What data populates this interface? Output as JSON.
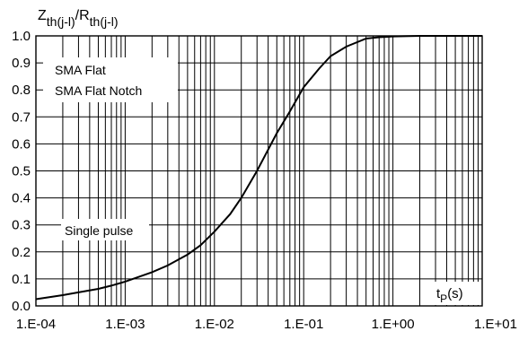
{
  "chart_data": {
    "type": "line",
    "title": "",
    "ylabel": {
      "main": "Z",
      "sub1": "th(j-l)",
      "sep": "/R",
      "sub2": "th(j-l)"
    },
    "xlabel": {
      "main": "t",
      "sub": "P",
      "unit": "(s)"
    },
    "x_scale": "log",
    "xlim": [
      0.0001,
      10
    ],
    "ylim": [
      0,
      1.0
    ],
    "grid": true,
    "x_tick_labels": [
      "1.E-04",
      "1.E-03",
      "1.E-02",
      "1.E-01",
      "1.E+00",
      "1.E+01"
    ],
    "y_tick_labels": [
      "0.0",
      "0.1",
      "0.2",
      "0.3",
      "0.4",
      "0.5",
      "0.6",
      "0.7",
      "0.8",
      "0.9",
      "1.0"
    ],
    "annotations": {
      "legend_line1": "SMA Flat",
      "legend_line2": "SMA Flat Notch",
      "pulse": "Single pulse"
    },
    "series": [
      {
        "x": [
          0.0001,
          0.0002,
          0.0003,
          0.0005,
          0.0007,
          0.001,
          0.002,
          0.003,
          0.005,
          0.007,
          0.01,
          0.015,
          0.02,
          0.03,
          0.05,
          0.07,
          0.1,
          0.15,
          0.2,
          0.3,
          0.5,
          0.7,
          1,
          2,
          10
        ],
        "y": [
          0.025,
          0.04,
          0.05,
          0.063,
          0.075,
          0.09,
          0.125,
          0.15,
          0.19,
          0.225,
          0.275,
          0.34,
          0.4,
          0.5,
          0.64,
          0.72,
          0.81,
          0.88,
          0.925,
          0.96,
          0.99,
          0.995,
          0.998,
          1.0,
          1.0
        ]
      }
    ]
  }
}
